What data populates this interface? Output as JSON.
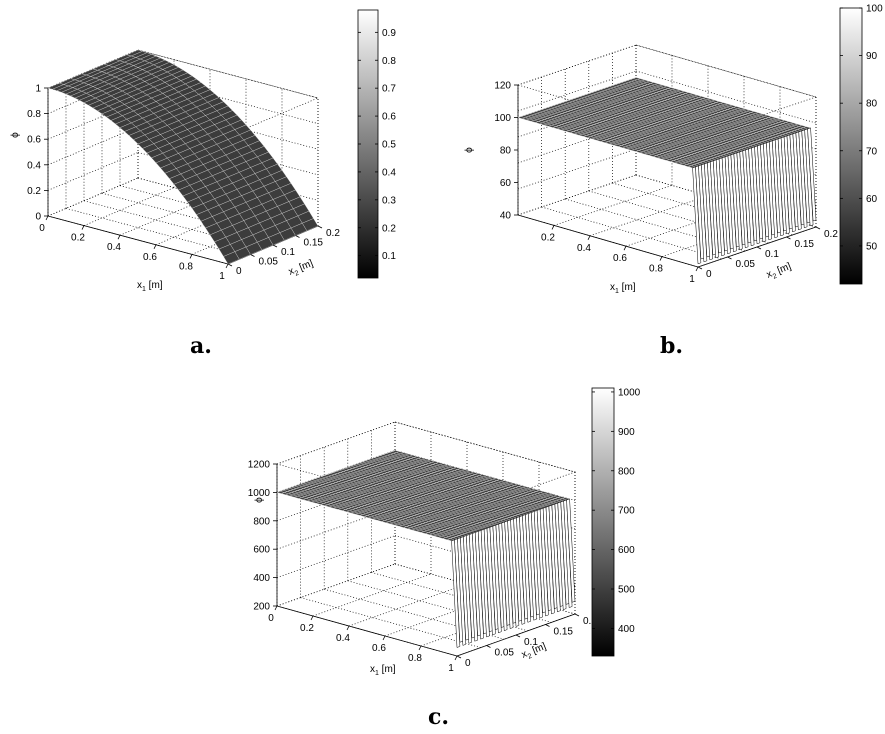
{
  "chart_data": [
    {
      "type": "surface3d",
      "caption": "a.",
      "zlabel": "ϕ",
      "xlabel_main": "x",
      "xlabel_sub": "1",
      "xlabel_unit": " [m]",
      "ylabel_main": "x",
      "ylabel_sub": "2",
      "ylabel_unit": " [m]",
      "x_ticks": [
        "0",
        "0.2",
        "0.4",
        "0.6",
        "0.8",
        "1"
      ],
      "y_ticks": [
        "0",
        "0.05",
        "0.1",
        "0.15",
        "0.2"
      ],
      "z_ticks": [
        "0",
        "0.2",
        "0.4",
        "0.6",
        "0.8",
        "1"
      ],
      "xlim": [
        0,
        1
      ],
      "ylim": [
        0,
        0.2
      ],
      "zlim": [
        0,
        1
      ],
      "colorbar_ticks": [
        "0.1",
        "0.2",
        "0.3",
        "0.4",
        "0.5",
        "0.6",
        "0.7",
        "0.8",
        "0.9"
      ],
      "colorbar_range": [
        0.02,
        0.98
      ],
      "surface": {
        "description": "phi decreases smoothly with x1, constant in x2",
        "x": [
          0,
          0.2,
          0.4,
          0.6,
          0.8,
          1
        ],
        "phi": [
          1,
          0.88,
          0.72,
          0.52,
          0.28,
          0
        ]
      }
    },
    {
      "type": "surface3d",
      "caption": "b.",
      "zlabel": "ϕ",
      "xlabel_main": "x",
      "xlabel_sub": "1",
      "xlabel_unit": " [m]",
      "ylabel_main": "x",
      "ylabel_sub": "2",
      "ylabel_unit": " [m]",
      "x_ticks": [
        "0.2",
        "0.4",
        "0.6",
        "0.8",
        "1"
      ],
      "y_ticks": [
        "0",
        "0.05",
        "0.1",
        "0.15",
        "0.2"
      ],
      "z_ticks": [
        "40",
        "60",
        "80",
        "100",
        "120"
      ],
      "xlim": [
        0,
        1
      ],
      "ylim": [
        0,
        0.2
      ],
      "zlim": [
        40,
        120
      ],
      "colorbar_ticks": [
        "50",
        "60",
        "70",
        "80",
        "90",
        "100"
      ],
      "colorbar_range": [
        42,
        100
      ],
      "surface": {
        "description": "phi = 100 plateau, sharp oscillating drop near x1 = 1",
        "plateau": 100,
        "edge_min": 42
      }
    },
    {
      "type": "surface3d",
      "caption": "c.",
      "zlabel": "ϕ",
      "xlabel_main": "x",
      "xlabel_sub": "1",
      "xlabel_unit": " [m]",
      "ylabel_main": "x",
      "ylabel_sub": "2",
      "ylabel_unit": " [m]",
      "x_ticks": [
        "0",
        "0.2",
        "0.4",
        "0.6",
        "0.8",
        "1"
      ],
      "y_ticks": [
        "0",
        "0.05",
        "0.1",
        "0.15",
        "0.2"
      ],
      "z_ticks": [
        "200",
        "400",
        "600",
        "800",
        "1000",
        "1200"
      ],
      "xlim": [
        0,
        1
      ],
      "ylim": [
        0,
        0.2
      ],
      "zlim": [
        200,
        1200
      ],
      "colorbar_ticks": [
        "400",
        "500",
        "600",
        "700",
        "800",
        "900",
        "1000"
      ],
      "colorbar_range": [
        330,
        1010
      ],
      "surface": {
        "description": "phi = 1000 plateau, sharp oscillating drop near x1 = 1",
        "plateau": 1000,
        "edge_min": 260
      }
    }
  ]
}
